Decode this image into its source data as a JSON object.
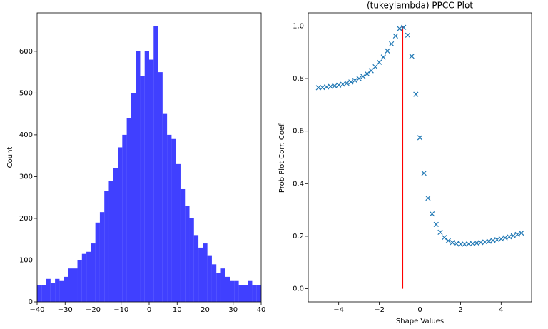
{
  "chart_data": [
    {
      "type": "histogram",
      "ylabel": "Count",
      "color": "#0000ff",
      "bins": [
        -40,
        -38.4,
        -36.8,
        -35.2,
        -33.6,
        -32,
        -30.4,
        -28.8,
        -27.2,
        -25.6,
        -24,
        -22.4,
        -20.8,
        -19.2,
        -17.6,
        -16,
        -14.4,
        -12.8,
        -11.2,
        -9.6,
        -8,
        -6.4,
        -4.8,
        -3.2,
        -1.6,
        0,
        1.6,
        3.2,
        4.8,
        6.4,
        8,
        9.6,
        11.2,
        12.8,
        14.4,
        16,
        17.6,
        19.2,
        20.8,
        22.4,
        24,
        25.6,
        27.2,
        28.8,
        30.4,
        32,
        33.6,
        35.2,
        36.8,
        38.4,
        40
      ],
      "values": [
        40,
        40,
        55,
        45,
        55,
        50,
        60,
        80,
        80,
        100,
        115,
        120,
        140,
        190,
        215,
        265,
        290,
        320,
        370,
        400,
        440,
        500,
        600,
        540,
        600,
        580,
        660,
        550,
        450,
        400,
        390,
        330,
        270,
        230,
        200,
        160,
        130,
        140,
        110,
        90,
        70,
        80,
        60,
        50,
        50,
        40,
        40,
        50,
        40,
        40
      ],
      "xlim": [
        -40,
        40
      ],
      "xticks": [
        {
          "value": -40,
          "label": "−40"
        },
        {
          "value": -30,
          "label": "−30"
        },
        {
          "value": -20,
          "label": "−20"
        },
        {
          "value": -10,
          "label": "−10"
        },
        0,
        10,
        20,
        30,
        40
      ],
      "ylim": [
        0,
        692
      ],
      "yticks": [
        0,
        100,
        200,
        300,
        400,
        500,
        600
      ]
    },
    {
      "type": "scatter",
      "title": "(tukeylambda) PPCC Plot",
      "xlabel": "Shape Values",
      "ylabel": "Prob Plot Corr. Coef.",
      "color": "#1f77b4",
      "x": [
        -5,
        -4.8,
        -4.6,
        -4.4,
        -4.2,
        -4,
        -3.8,
        -3.6,
        -3.4,
        -3.2,
        -3,
        -2.8,
        -2.6,
        -2.4,
        -2.2,
        -2,
        -1.8,
        -1.6,
        -1.4,
        -1.2,
        -1,
        -0.8,
        -0.6,
        -0.4,
        -0.2,
        0,
        0.2,
        0.4,
        0.6,
        0.8,
        1,
        1.2,
        1.4,
        1.6,
        1.8,
        2,
        2.2,
        2.4,
        2.6,
        2.8,
        3,
        3.2,
        3.4,
        3.6,
        3.8,
        4,
        4.2,
        4.4,
        4.6,
        4.8,
        5
      ],
      "values": [
        0.765,
        0.766,
        0.768,
        0.77,
        0.772,
        0.775,
        0.778,
        0.782,
        0.787,
        0.793,
        0.8,
        0.808,
        0.818,
        0.83,
        0.845,
        0.862,
        0.882,
        0.905,
        0.932,
        0.962,
        0.99,
        0.995,
        0.965,
        0.885,
        0.74,
        0.575,
        0.44,
        0.345,
        0.285,
        0.245,
        0.215,
        0.195,
        0.183,
        0.176,
        0.172,
        0.17,
        0.17,
        0.171,
        0.172,
        0.174,
        0.176,
        0.178,
        0.181,
        0.184,
        0.187,
        0.19,
        0.194,
        0.198,
        0.202,
        0.207,
        0.212
      ],
      "vline": {
        "x": -0.85,
        "ymin": 0,
        "ymax": 1,
        "color": "#ff0000"
      },
      "xlim": [
        -5.5,
        5.5
      ],
      "xticks": [
        {
          "value": -4,
          "label": "−4"
        },
        {
          "value": -2,
          "label": "−2"
        },
        0,
        2,
        4
      ],
      "ylim": [
        -0.05,
        1.05
      ],
      "yticks": [
        {
          "value": 0,
          "label": "0.0"
        },
        0.2,
        0.4,
        0.6,
        0.8,
        {
          "value": 1,
          "label": "1.0"
        }
      ]
    }
  ]
}
